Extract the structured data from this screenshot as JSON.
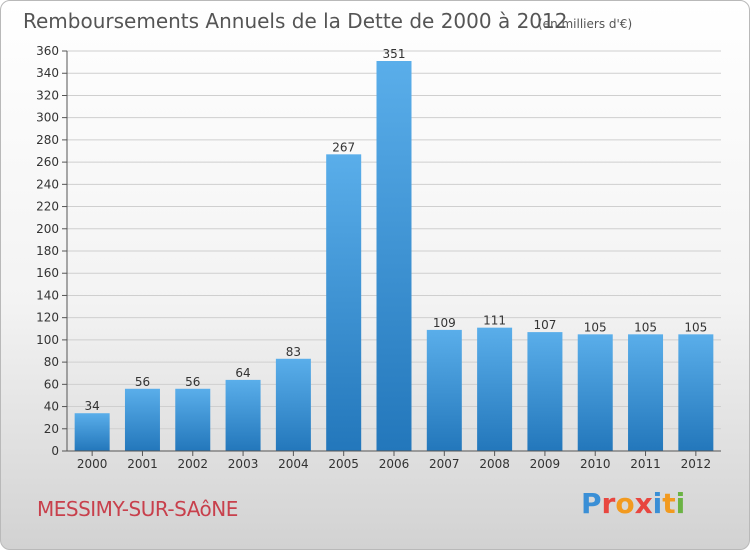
{
  "header": {
    "title": "Remboursements Annuels de la Dette de 2000 à 2012",
    "unit": "(en milliers d'€)"
  },
  "footer": {
    "town": "MESSIMY-SUR-SAôNE",
    "logo_text": "Proxiti",
    "logo_colors": [
      "#3a8fd6",
      "#e8463f",
      "#f29a1f",
      "#e8463f",
      "#3a8fd6",
      "#f29a1f",
      "#6bb344"
    ]
  },
  "chart_data": {
    "type": "bar",
    "title": "Remboursements Annuels de la Dette de 2000 à 2012",
    "subtitle": "(en milliers d'€)",
    "xlabel": "",
    "ylabel": "",
    "categories": [
      "2000",
      "2001",
      "2002",
      "2003",
      "2004",
      "2005",
      "2006",
      "2007",
      "2008",
      "2009",
      "2010",
      "2011",
      "2012"
    ],
    "values": [
      34,
      56,
      56,
      64,
      83,
      267,
      351,
      109,
      111,
      107,
      105,
      105,
      105
    ],
    "ylim": [
      0,
      360
    ],
    "yticks": [
      0,
      20,
      40,
      60,
      80,
      100,
      120,
      140,
      160,
      180,
      200,
      220,
      240,
      260,
      280,
      300,
      320,
      340,
      360
    ],
    "grid": true,
    "bar_color_top": "#5aaeea",
    "bar_color_bottom": "#2377bb"
  }
}
